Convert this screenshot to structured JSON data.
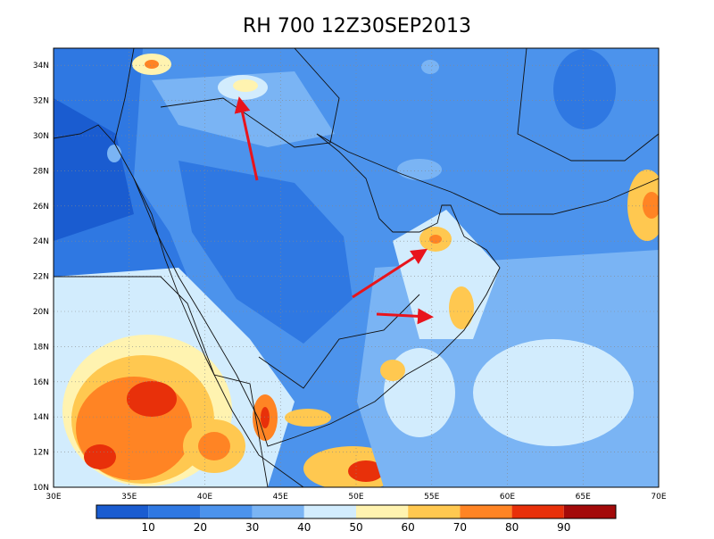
{
  "title": "RH 700 12Z30SEP2013",
  "lon_labels": [
    "30E",
    "35E",
    "40E",
    "45E",
    "50E",
    "55E",
    "60E",
    "65E",
    "70E"
  ],
  "lat_labels": [
    "34N",
    "32N",
    "30N",
    "28N",
    "26N",
    "24N",
    "22N",
    "20N",
    "18N",
    "16N",
    "14N",
    "12N",
    "10N"
  ],
  "colorbar": {
    "labels": [
      10,
      20,
      30,
      40,
      50,
      60,
      70,
      80,
      90
    ],
    "colors": [
      "#1a5cd0",
      "#2f78e2",
      "#4c93ec",
      "#7ab4f4",
      "#d2ecfd",
      "#fff3b0",
      "#ffc850",
      "#ff8424",
      "#e8300a",
      "#a30a0a"
    ]
  }
}
